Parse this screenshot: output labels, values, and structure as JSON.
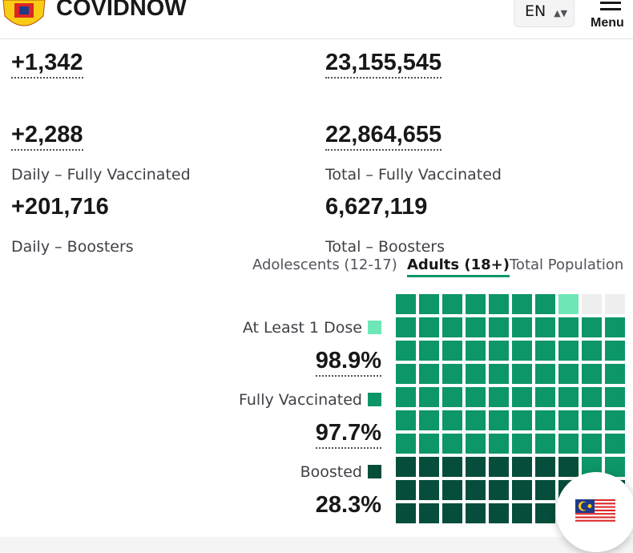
{
  "header": {
    "brand": "COVIDNOW",
    "language": "EN",
    "menu": "Menu"
  },
  "stats": [
    {
      "value": "+1,342",
      "underline": true
    },
    {
      "value": "23,155,545",
      "underline": true
    },
    {
      "label": "Daily – Fully Vaccinated",
      "value": "+2,288",
      "underline": true
    },
    {
      "label": "Total – Fully Vaccinated",
      "value": "22,864,655",
      "underline": true
    },
    {
      "label": "Daily – Boosters",
      "value": "+201,716",
      "underline": false
    },
    {
      "label": "Total – Boosters",
      "value": "6,627,119",
      "underline": false
    }
  ],
  "tabs": {
    "items": [
      "Adolescents (12-17)",
      "Adults (18+)",
      "Total Population"
    ],
    "active": 1
  },
  "waffle": {
    "empty_color": "#eeeeee",
    "legend": [
      {
        "label": "At Least 1 Dose",
        "value": 98.9,
        "value_label": "98.9%",
        "color": "#6ee7b7",
        "underline": true
      },
      {
        "label": "Fully Vaccinated",
        "value": 97.7,
        "value_label": "97.7%",
        "color": "#0d9668",
        "underline": true
      },
      {
        "label": "Boosted",
        "value": 28.3,
        "value_label": "28.3%",
        "color": "#064e3b",
        "underline": false
      }
    ]
  }
}
